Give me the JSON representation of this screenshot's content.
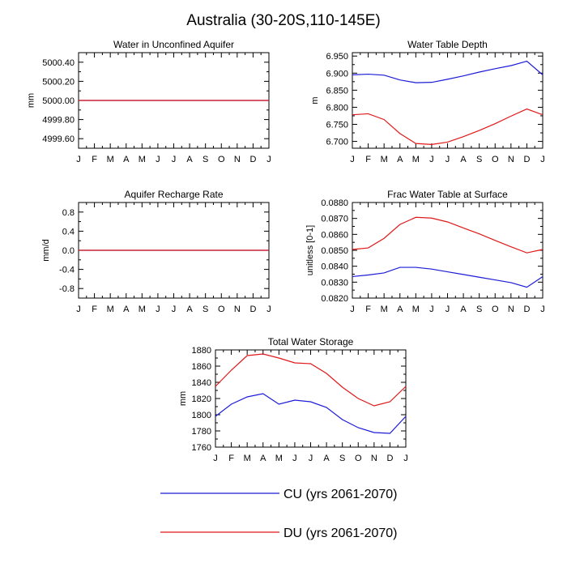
{
  "figure_title": "Australia (30-20S,110-145E)",
  "months": [
    "J",
    "F",
    "M",
    "A",
    "M",
    "J",
    "J",
    "A",
    "S",
    "O",
    "N",
    "D",
    "J"
  ],
  "colors": {
    "CU": "#1c1cd8",
    "DU": "#e01818",
    "axis": "#000000"
  },
  "legend": [
    {
      "label": "CU (yrs 2061-2070)",
      "color": "#1c1cd8"
    },
    {
      "label": "DU (yrs 2061-2070)",
      "color": "#e01818"
    }
  ],
  "chart_data": [
    {
      "type": "line",
      "title": "Water in Unconfined Aquifer",
      "ylabel": "mm",
      "ylim": [
        4999.5,
        5000.5
      ],
      "yticks": [
        4999.6,
        4999.8,
        5000.0,
        5000.2,
        5000.4
      ],
      "ytick_labels": [
        "4999.60",
        "4999.80",
        "5000.00",
        "5000.20",
        "5000.40"
      ],
      "x": [
        "J",
        "F",
        "M",
        "A",
        "M",
        "J",
        "J",
        "A",
        "S",
        "O",
        "N",
        "D",
        "J"
      ],
      "series": [
        {
          "name": "CU",
          "values": [
            5000,
            5000,
            5000,
            5000,
            5000,
            5000,
            5000,
            5000,
            5000,
            5000,
            5000,
            5000,
            5000
          ]
        },
        {
          "name": "DU",
          "values": [
            5000,
            5000,
            5000,
            5000,
            5000,
            5000,
            5000,
            5000,
            5000,
            5000,
            5000,
            5000,
            5000
          ]
        }
      ]
    },
    {
      "type": "line",
      "title": "Water Table Depth",
      "ylabel": "m",
      "ylim": [
        6.68,
        6.96
      ],
      "yticks": [
        6.7,
        6.75,
        6.8,
        6.85,
        6.9,
        6.95
      ],
      "ytick_labels": [
        "6.700",
        "6.750",
        "6.800",
        "6.850",
        "6.900",
        "6.950"
      ],
      "x": [
        "J",
        "F",
        "M",
        "A",
        "M",
        "J",
        "J",
        "A",
        "S",
        "O",
        "N",
        "D",
        "J"
      ],
      "series": [
        {
          "name": "CU",
          "values": [
            6.895,
            6.897,
            6.894,
            6.88,
            6.872,
            6.873,
            6.882,
            6.892,
            6.903,
            6.913,
            6.922,
            6.935,
            6.895
          ]
        },
        {
          "name": "DU",
          "values": [
            6.778,
            6.781,
            6.764,
            6.723,
            6.694,
            6.691,
            6.698,
            6.714,
            6.732,
            6.752,
            6.774,
            6.795,
            6.778
          ]
        }
      ]
    },
    {
      "type": "line",
      "title": "Aquifer Recharge Rate",
      "ylabel": "mm/d",
      "ylim": [
        -1.0,
        1.0
      ],
      "yticks": [
        -0.8,
        -0.4,
        0.0,
        0.4,
        0.8
      ],
      "ytick_labels": [
        "-0.8",
        "-0.4",
        "0.0",
        "0.4",
        "0.8"
      ],
      "x": [
        "J",
        "F",
        "M",
        "A",
        "M",
        "J",
        "J",
        "A",
        "S",
        "O",
        "N",
        "D",
        "J"
      ],
      "series": [
        {
          "name": "CU",
          "values": [
            0,
            0,
            0,
            0,
            0,
            0,
            0,
            0,
            0,
            0,
            0,
            0,
            0
          ]
        },
        {
          "name": "DU",
          "values": [
            0,
            0,
            0,
            0,
            0,
            0,
            0,
            0,
            0,
            0,
            0,
            0,
            0
          ]
        }
      ]
    },
    {
      "type": "line",
      "title": "Frac Water Table at Surface",
      "ylabel": "unitless [0-1]",
      "ylim": [
        0.082,
        0.088
      ],
      "yticks": [
        0.082,
        0.083,
        0.084,
        0.085,
        0.086,
        0.087,
        0.088
      ],
      "ytick_labels": [
        "0.0820",
        "0.0830",
        "0.0840",
        "0.0850",
        "0.0860",
        "0.0870",
        "0.0880"
      ],
      "x": [
        "J",
        "F",
        "M",
        "A",
        "M",
        "J",
        "J",
        "A",
        "S",
        "O",
        "N",
        "D",
        "J"
      ],
      "series": [
        {
          "name": "CU",
          "values": [
            0.08335,
            0.08345,
            0.08358,
            0.08393,
            0.08393,
            0.08382,
            0.08365,
            0.08348,
            0.08331,
            0.08314,
            0.08297,
            0.08268,
            0.08335
          ]
        },
        {
          "name": "DU",
          "values": [
            0.08505,
            0.08515,
            0.08575,
            0.08662,
            0.08707,
            0.08702,
            0.08678,
            0.0864,
            0.08603,
            0.08562,
            0.08522,
            0.08484,
            0.08505
          ]
        }
      ]
    },
    {
      "type": "line",
      "title": "Total Water Storage",
      "ylabel": "mm",
      "ylim": [
        1760,
        1880
      ],
      "yticks": [
        1760,
        1780,
        1800,
        1820,
        1840,
        1860,
        1880
      ],
      "ytick_labels": [
        "1760",
        "1780",
        "1800",
        "1820",
        "1840",
        "1860",
        "1880"
      ],
      "x": [
        "J",
        "F",
        "M",
        "A",
        "M",
        "J",
        "J",
        "A",
        "S",
        "O",
        "N",
        "D",
        "J"
      ],
      "series": [
        {
          "name": "CU",
          "values": [
            1798,
            1813,
            1822,
            1826,
            1813,
            1818,
            1816,
            1809,
            1794,
            1784,
            1778,
            1777,
            1798
          ]
        },
        {
          "name": "DU",
          "values": [
            1835,
            1855,
            1873,
            1875,
            1870,
            1864,
            1863,
            1851,
            1834,
            1820,
            1811,
            1816,
            1835
          ]
        }
      ]
    }
  ]
}
